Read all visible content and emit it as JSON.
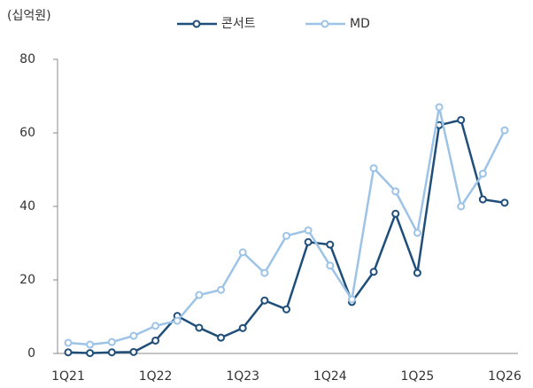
{
  "chart_data": {
    "type": "line",
    "y_label": "(십억원)",
    "categories": [
      "1Q21",
      null,
      null,
      null,
      "1Q22",
      null,
      null,
      null,
      "1Q23",
      null,
      null,
      null,
      "1Q24",
      null,
      null,
      null,
      "1Q25",
      null,
      null,
      null,
      "1Q26"
    ],
    "series": [
      {
        "name": "콘서트",
        "color": "#1f4e79",
        "values": [
          0.3,
          0.1,
          0.3,
          0.4,
          3.5,
          10.2,
          7,
          4.3,
          6.9,
          14.4,
          12,
          30.3,
          29.6,
          14,
          22.2,
          38,
          21.9,
          62.1,
          63.5,
          41.9,
          41
        ]
      },
      {
        "name": "MD",
        "color": "#9dc3e6",
        "values": [
          2.9,
          2.4,
          3.1,
          4.8,
          7.5,
          8.9,
          15.9,
          17.3,
          27.5,
          21.9,
          32,
          33.5,
          23.9,
          14.7,
          50.4,
          44.1,
          32.8,
          67,
          40,
          48.9,
          60.7
        ]
      }
    ],
    "ylim": [
      0,
      80
    ],
    "yticks": [
      0,
      20,
      40,
      60,
      80
    ],
    "legend": "top"
  }
}
